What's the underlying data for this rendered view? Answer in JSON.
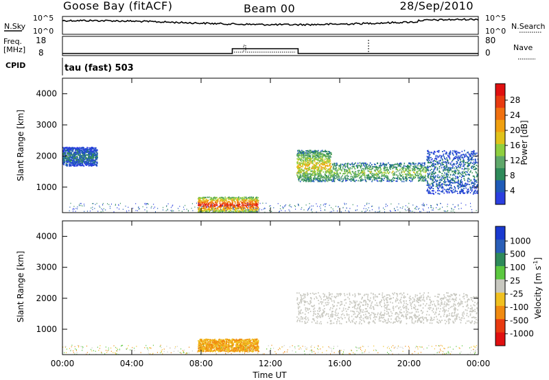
{
  "header": {
    "station": "Goose Bay (fitACF)",
    "beam": "Beam 00",
    "date": "28/Sep/2010"
  },
  "top_panel": {
    "left_label": "N.Sky",
    "right_label": "N.Search",
    "left_ticks": [
      "10^5",
      "10^0"
    ],
    "right_ticks": [
      "10^5",
      "10^0"
    ]
  },
  "freq_panel": {
    "left_label_line1": "Freq.",
    "left_label_line2": "[MHz]",
    "right_label": "Nave",
    "left_ticks": [
      "18",
      "8"
    ],
    "right_ticks": [
      "80",
      "0"
    ]
  },
  "cpid_panel": {
    "label": "CPID",
    "text": "tau (fast) 503"
  },
  "power_panel": {
    "ylabel": "Slant Range [km]",
    "yticks": [
      "4000",
      "3000",
      "2000",
      "1000"
    ],
    "colorbar_label": "Power [dB]",
    "colorbar_ticks": [
      "28",
      "24",
      "20",
      "16",
      "12",
      "8",
      "4"
    ],
    "colors": [
      "#2b3fe0",
      "#1f5bb8",
      "#2e8a5a",
      "#5fa86a",
      "#8fcf3f",
      "#e0c21a",
      "#f0a010",
      "#f07010",
      "#e83a10",
      "#e01010"
    ]
  },
  "velocity_panel": {
    "ylabel": "Slant Range [km]",
    "yticks": [
      "4000",
      "3000",
      "2000",
      "1000"
    ],
    "colorbar_label": "Velocity [m s",
    "colorbar_label_sup": "-1",
    "colorbar_label_end": "]",
    "colorbar_ticks": [
      "1000",
      "500",
      "100",
      "25",
      "-25",
      "-100",
      "-500",
      "-1000"
    ],
    "colors": [
      "#1a3ad0",
      "#2a5fb8",
      "#2e8a5a",
      "#5cc840",
      "#c8c8c0",
      "#f0c020",
      "#f08a10",
      "#e83a10",
      "#e01010"
    ]
  },
  "x_axis": {
    "label": "Time UT",
    "ticks": [
      "00:00",
      "04:00",
      "08:00",
      "12:00",
      "16:00",
      "20:00",
      "00:00"
    ]
  },
  "chart_data": {
    "type": "heatmap",
    "title": "Goose Bay (fitACF)  Beam 00  28/Sep/2010",
    "xlabel": "Time UT",
    "ylabel": "Slant Range [km]",
    "xlim_hours": [
      0,
      24
    ],
    "ylim_km": [
      180,
      4500
    ],
    "grid": false,
    "freq_mhz": [
      {
        "start_hour": 0,
        "end_hour": 9.8,
        "value": 10.5
      },
      {
        "start_hour": 9.8,
        "end_hour": 13.6,
        "value": 13
      },
      {
        "start_hour": 13.6,
        "end_hour": 24,
        "value": 10.5
      }
    ],
    "power_db_regions": [
      {
        "t_start": 7.8,
        "t_end": 11.3,
        "range_start_km": 200,
        "range_end_km": 700,
        "level_db": 26
      },
      {
        "t_start": 13.5,
        "t_end": 15.5,
        "range_start_km": 1200,
        "range_end_km": 2200,
        "level_db": 18
      },
      {
        "t_start": 15.5,
        "t_end": 21,
        "range_start_km": 1200,
        "range_end_km": 1800,
        "level_db": 14
      },
      {
        "t_start": 0,
        "t_end": 2,
        "range_start_km": 1700,
        "range_end_km": 2300,
        "level_db": 8
      },
      {
        "t_start": 21,
        "t_end": 24,
        "range_start_km": 800,
        "range_end_km": 2200,
        "level_db": 8
      }
    ],
    "velocity_ms_regions": [
      {
        "t_start": 7.8,
        "t_end": 11.3,
        "range_start_km": 300,
        "range_end_km": 700,
        "level_ms": -200
      },
      {
        "t_start": 13.5,
        "t_end": 24,
        "range_start_km": 1200,
        "range_end_km": 2200,
        "level_ms": 0
      }
    ]
  }
}
